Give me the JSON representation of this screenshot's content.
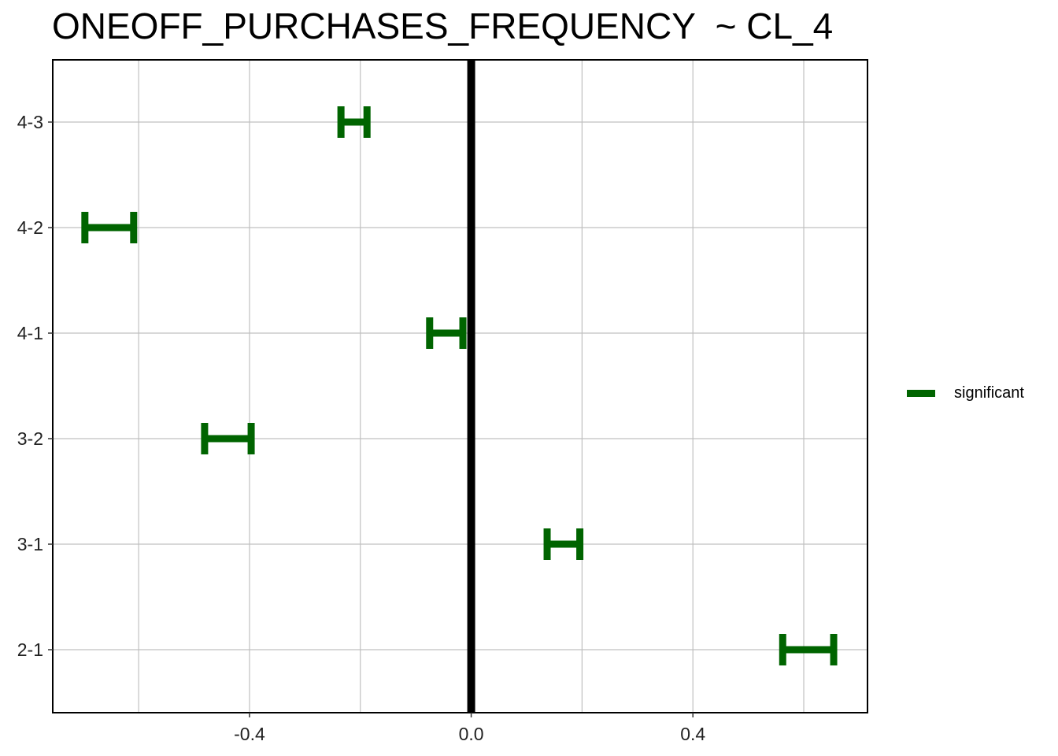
{
  "chart_data": {
    "type": "errorbar",
    "title": "ONEOFF_PURCHASES_FREQUENCY  ~ CL_4",
    "xlabel": "",
    "ylabel": "",
    "xlim": [
      -0.755,
      0.715
    ],
    "x_ticks": [
      -0.4,
      0.0,
      0.4
    ],
    "x_tick_labels": [
      "-0.4",
      "0.0",
      "0.4"
    ],
    "grid": true,
    "reference_line_x": 0.0,
    "legend": {
      "position": "right",
      "entries": [
        {
          "name": "significant",
          "color": "#006400"
        }
      ]
    },
    "categories": [
      "4-3",
      "4-2",
      "4-1",
      "3-2",
      "3-1",
      "2-1"
    ],
    "intervals": [
      {
        "comparison": "4-3",
        "lower": -0.235,
        "upper": -0.188,
        "status": "significant"
      },
      {
        "comparison": "4-2",
        "lower": -0.697,
        "upper": -0.609,
        "status": "significant"
      },
      {
        "comparison": "4-1",
        "lower": -0.075,
        "upper": -0.015,
        "status": "significant"
      },
      {
        "comparison": "3-2",
        "lower": -0.481,
        "upper": -0.397,
        "status": "significant"
      },
      {
        "comparison": "3-1",
        "lower": 0.137,
        "upper": 0.196,
        "status": "significant"
      },
      {
        "comparison": "2-1",
        "lower": 0.562,
        "upper": 0.654,
        "status": "significant"
      }
    ]
  }
}
